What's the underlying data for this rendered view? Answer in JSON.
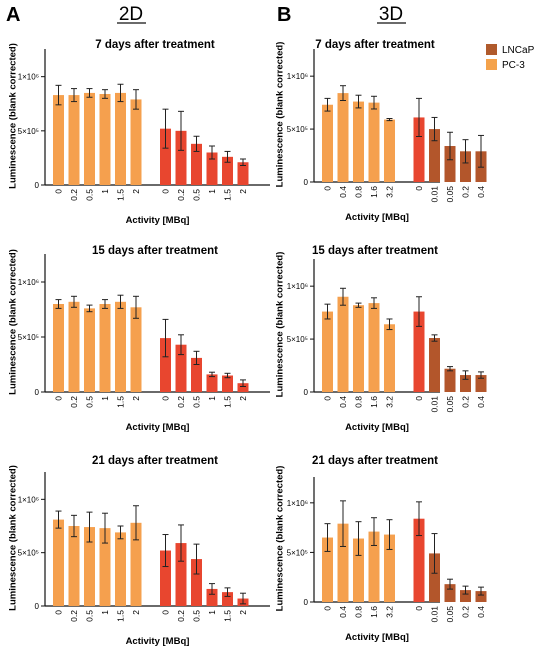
{
  "figure": {
    "panel_letters": [
      "A",
      "B"
    ],
    "column_headers": [
      "2D",
      "3D"
    ],
    "legend": [
      {
        "label": "LNCaP",
        "color": "#b05a2c"
      },
      {
        "label": "PC-3",
        "color": "#f4a24b"
      }
    ]
  },
  "colors": {
    "pc3_bar": "#f5a04e",
    "lncap_bar": "#e8462f",
    "lncap_bar_3d_dark": "#b3562b",
    "axis": "#111111",
    "error_bar": "#222222"
  },
  "chart_data": [
    {
      "type": "bar",
      "title": "7 days after treatment",
      "xlabel": "Activity [MBq]",
      "ylabel": "Luminescence (blank corrected)",
      "ylim": [
        0,
        1200000
      ],
      "yticks": [
        0,
        500000,
        1000000
      ],
      "ytick_labels": [
        "0",
        "5×10⁵",
        "1×10⁶"
      ],
      "groups": [
        {
          "series": "PC-3",
          "categories": [
            "0",
            "0.2",
            "0.5",
            "1",
            "1.5",
            "2"
          ],
          "values": [
            830000,
            830000,
            850000,
            840000,
            850000,
            790000
          ],
          "errors": [
            90000,
            60000,
            40000,
            40000,
            80000,
            90000
          ]
        },
        {
          "series": "LNCaP",
          "categories": [
            "0",
            "0.2",
            "0.5",
            "1",
            "1.5",
            "2"
          ],
          "values": [
            520000,
            500000,
            380000,
            300000,
            260000,
            210000
          ],
          "errors": [
            180000,
            180000,
            70000,
            60000,
            50000,
            30000
          ]
        }
      ]
    },
    {
      "type": "bar",
      "title": "7 days after treatment",
      "xlabel": "Activity [MBq]",
      "ylabel": "Luminescence (blank corrected)",
      "ylim": [
        0,
        1200000
      ],
      "yticks": [
        0,
        500000,
        1000000
      ],
      "ytick_labels": [
        "0",
        "5×10⁵",
        "1×10⁶"
      ],
      "groups": [
        {
          "series": "PC-3",
          "categories": [
            "0",
            "0.4",
            "0.8",
            "1.6",
            "3.2"
          ],
          "values": [
            730000,
            840000,
            760000,
            750000,
            590000
          ],
          "errors": [
            60000,
            70000,
            60000,
            60000,
            10000
          ]
        },
        {
          "series": "LNCaP",
          "categories": [
            "0",
            "0.01",
            "0.05",
            "0.2",
            "0.4"
          ],
          "values": [
            610000,
            500000,
            340000,
            290000,
            290000
          ],
          "errors": [
            180000,
            110000,
            130000,
            110000,
            150000
          ]
        }
      ]
    },
    {
      "type": "bar",
      "title": "15 days after treatment",
      "xlabel": "Activity [MBq]",
      "ylabel": "Luminescence (blank corrected)",
      "ylim": [
        0,
        1200000
      ],
      "yticks": [
        0,
        500000,
        1000000
      ],
      "ytick_labels": [
        "0",
        "5×10⁵",
        "1×10⁶"
      ],
      "groups": [
        {
          "series": "PC-3",
          "categories": [
            "0",
            "0.2",
            "0.5",
            "1",
            "1.5",
            "2"
          ],
          "values": [
            800000,
            820000,
            760000,
            800000,
            820000,
            770000
          ],
          "errors": [
            40000,
            50000,
            30000,
            40000,
            60000,
            100000
          ]
        },
        {
          "series": "LNCaP",
          "categories": [
            "0",
            "0.2",
            "0.5",
            "1",
            "1.5",
            "2"
          ],
          "values": [
            490000,
            430000,
            310000,
            160000,
            150000,
            80000
          ],
          "errors": [
            170000,
            90000,
            60000,
            20000,
            20000,
            30000
          ]
        }
      ]
    },
    {
      "type": "bar",
      "title": "15 days after treatment",
      "xlabel": "Activity [MBq]",
      "ylabel": "Luminescence (blank corrected)",
      "ylim": [
        0,
        1200000
      ],
      "yticks": [
        0,
        500000,
        1000000
      ],
      "ytick_labels": [
        "0",
        "5×10⁵",
        "1×10⁶"
      ],
      "groups": [
        {
          "series": "PC-3",
          "categories": [
            "0",
            "0.4",
            "0.8",
            "1.6",
            "3.2"
          ],
          "values": [
            760000,
            900000,
            820000,
            840000,
            640000
          ],
          "errors": [
            70000,
            80000,
            20000,
            50000,
            50000
          ]
        },
        {
          "series": "LNCaP",
          "categories": [
            "0",
            "0.01",
            "0.05",
            "0.2",
            "0.4"
          ],
          "values": [
            760000,
            510000,
            220000,
            160000,
            160000
          ],
          "errors": [
            140000,
            30000,
            20000,
            40000,
            30000
          ]
        }
      ]
    },
    {
      "type": "bar",
      "title": "21 days after treatment",
      "xlabel": "Activity [MBq]",
      "ylabel": "Luminescence (blank corrected)",
      "ylim": [
        0,
        1200000
      ],
      "yticks": [
        0,
        500000,
        1000000
      ],
      "ytick_labels": [
        "0",
        "5×10⁵",
        "1×10⁶"
      ],
      "groups": [
        {
          "series": "PC-3",
          "categories": [
            "0",
            "0.2",
            "0.5",
            "1",
            "1.5",
            "2"
          ],
          "values": [
            810000,
            750000,
            740000,
            730000,
            690000,
            780000
          ],
          "errors": [
            80000,
            100000,
            140000,
            140000,
            60000,
            160000
          ]
        },
        {
          "series": "LNCaP",
          "categories": [
            "0",
            "0.2",
            "0.5",
            "1",
            "1.5",
            "2"
          ],
          "values": [
            520000,
            590000,
            440000,
            160000,
            130000,
            70000
          ],
          "errors": [
            150000,
            170000,
            140000,
            50000,
            40000,
            50000
          ]
        }
      ]
    },
    {
      "type": "bar",
      "title": "21 days after treatment",
      "xlabel": "Activity [MBq]",
      "ylabel": "Luminescence (blank corrected)",
      "ylim": [
        0,
        1200000
      ],
      "yticks": [
        0,
        500000,
        1000000
      ],
      "ytick_labels": [
        "0",
        "5×10⁵",
        "1×10⁶"
      ],
      "groups": [
        {
          "series": "PC-3",
          "categories": [
            "0",
            "0.4",
            "0.8",
            "1.6",
            "3.2"
          ],
          "values": [
            650000,
            790000,
            640000,
            710000,
            680000
          ],
          "errors": [
            140000,
            230000,
            170000,
            140000,
            150000
          ]
        },
        {
          "series": "LNCaP",
          "categories": [
            "0",
            "0.01",
            "0.05",
            "0.2",
            "0.4"
          ],
          "values": [
            840000,
            490000,
            180000,
            120000,
            110000
          ],
          "errors": [
            170000,
            200000,
            50000,
            40000,
            40000
          ]
        }
      ]
    }
  ]
}
